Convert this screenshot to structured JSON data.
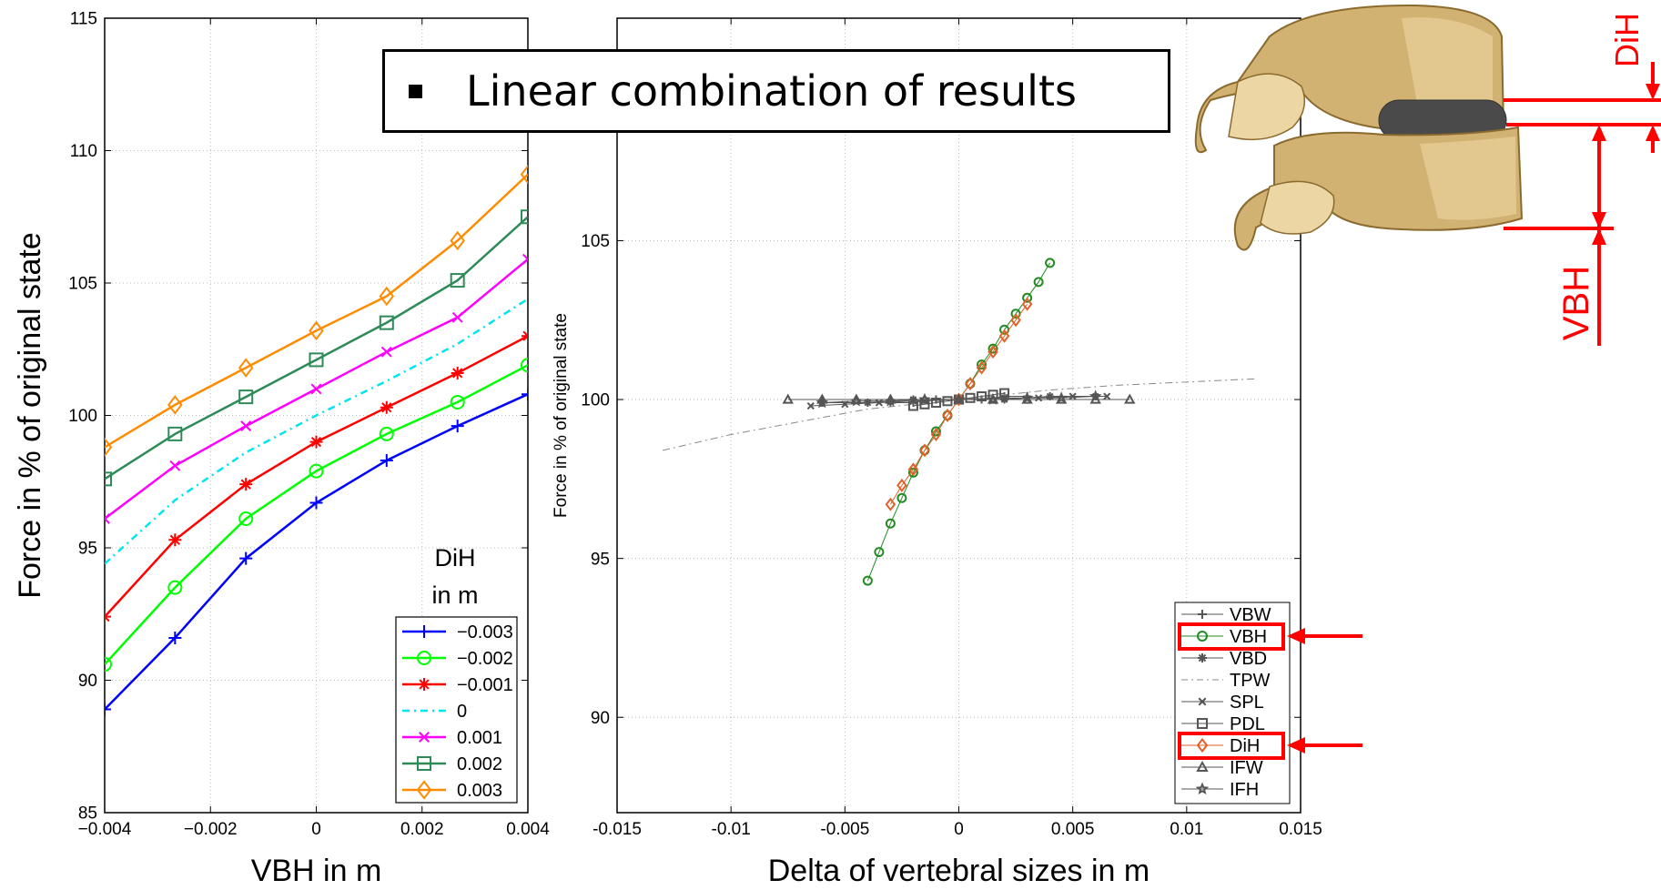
{
  "banner": {
    "text": "Linear combination of results"
  },
  "annotation": {
    "labels": [
      "DiH",
      "VBH"
    ],
    "color": "#ff0000"
  },
  "chart_data": [
    {
      "type": "line",
      "xlabel": "VBH in m",
      "ylabel": "Force in % of original state",
      "xlim": [
        -0.004,
        0.004
      ],
      "ylim": [
        85,
        115
      ],
      "xticks": [
        -0.004,
        -0.002,
        0,
        0.002,
        0.004
      ],
      "xtick_labels": [
        "−0.004",
        "−0.002",
        "0",
        "0.002",
        "0.004"
      ],
      "yticks": [
        85,
        90,
        95,
        100,
        105,
        110,
        115
      ],
      "ytick_labels": [
        "85",
        "90",
        "95",
        "100",
        "105",
        "110",
        "115"
      ],
      "grid": true,
      "legend_title": [
        "DiH",
        "in m"
      ],
      "legend_position": "bottom-right",
      "x": [
        -0.004,
        -0.00267,
        -0.00133,
        0,
        0.00133,
        0.00267,
        0.004
      ],
      "series": [
        {
          "name": "−0.003",
          "color": "#0000ff",
          "marker": "plus",
          "values": [
            88.9,
            91.6,
            94.6,
            96.7,
            98.3,
            99.6,
            100.8
          ]
        },
        {
          "name": "−0.002",
          "color": "#00ff00",
          "marker": "circle",
          "values": [
            90.6,
            93.5,
            96.1,
            97.9,
            99.3,
            100.5,
            101.9
          ]
        },
        {
          "name": "−0.001",
          "color": "#ff0000",
          "marker": "asterisk",
          "values": [
            92.4,
            95.3,
            97.4,
            99.0,
            100.3,
            101.6,
            103.0
          ]
        },
        {
          "name": "0",
          "color": "#00e5ee",
          "marker": "none",
          "dash": "dashdot",
          "values": [
            94.4,
            96.8,
            98.6,
            100.0,
            101.3,
            102.7,
            104.4
          ]
        },
        {
          "name": "0.001",
          "color": "#ff00ff",
          "marker": "x",
          "values": [
            96.1,
            98.1,
            99.6,
            101.0,
            102.4,
            103.7,
            105.9
          ]
        },
        {
          "name": "0.002",
          "color": "#2e8b57",
          "marker": "square",
          "values": [
            97.6,
            99.3,
            100.7,
            102.1,
            103.5,
            105.1,
            107.5
          ]
        },
        {
          "name": "0.003",
          "color": "#ff8c00",
          "marker": "diamond",
          "values": [
            98.8,
            100.4,
            101.8,
            103.2,
            104.5,
            106.6,
            109.1
          ]
        }
      ]
    },
    {
      "type": "line",
      "xlabel": "Delta of vertebral sizes in m",
      "ylabel": "Force in % of original state",
      "xlim": [
        -0.015,
        0.015
      ],
      "ylim": [
        87,
        112
      ],
      "xticks": [
        -0.015,
        -0.01,
        -0.005,
        0,
        0.005,
        0.01,
        0.015
      ],
      "xtick_labels": [
        "-0.015",
        "-0.01",
        "-0.005",
        "0",
        "0.005",
        "0.01",
        "0.015"
      ],
      "yticks": [
        90,
        95,
        100,
        105
      ],
      "ytick_labels": [
        "90",
        "95",
        "100",
        "105"
      ],
      "grid": true,
      "legend_position": "bottom-right",
      "highlighted_legend_entries": [
        "VBH",
        "DiH"
      ],
      "series": [
        {
          "name": "VBW",
          "color": "#555555",
          "marker": "plus",
          "x": [
            -0.003,
            -0.002,
            -0.001,
            0,
            0.001,
            0.002,
            0.003
          ],
          "values": [
            99.9,
            99.9,
            100.0,
            100.0,
            100.0,
            100.1,
            100.1
          ]
        },
        {
          "name": "VBH",
          "color": "#228b22",
          "marker": "circle",
          "x": [
            -0.004,
            -0.0035,
            -0.003,
            -0.0025,
            -0.002,
            -0.0015,
            -0.001,
            -0.0005,
            0,
            0.0005,
            0.001,
            0.0015,
            0.002,
            0.0025,
            0.003,
            0.0035,
            0.004
          ],
          "values": [
            94.3,
            95.2,
            96.1,
            96.9,
            97.7,
            98.4,
            99.0,
            99.5,
            100.0,
            100.5,
            101.1,
            101.6,
            102.2,
            102.7,
            103.2,
            103.7,
            104.3
          ]
        },
        {
          "name": "VBD",
          "color": "#555555",
          "marker": "asterisk",
          "x": [
            -0.006,
            -0.004,
            -0.002,
            0,
            0.002,
            0.004,
            0.006
          ],
          "values": [
            99.9,
            99.9,
            100.0,
            100.0,
            100.0,
            100.1,
            100.1
          ]
        },
        {
          "name": "TPW",
          "color": "#888888",
          "marker": "none",
          "dash": "dashdot",
          "x": [
            -0.013,
            -0.01,
            -0.007,
            -0.004,
            0,
            0.004,
            0.007,
            0.01,
            0.013
          ],
          "values": [
            98.4,
            98.9,
            99.3,
            99.7,
            100.0,
            100.3,
            100.45,
            100.55,
            100.65
          ]
        },
        {
          "name": "SPL",
          "color": "#555555",
          "marker": "x",
          "x": [
            -0.0065,
            -0.005,
            -0.0035,
            -0.002,
            0,
            0.002,
            0.0035,
            0.005,
            0.0065
          ],
          "values": [
            99.8,
            99.85,
            99.9,
            99.95,
            100.0,
            100.05,
            100.05,
            100.1,
            100.1
          ]
        },
        {
          "name": "PDL",
          "color": "#555555",
          "marker": "square",
          "x": [
            -0.002,
            -0.0015,
            -0.001,
            -0.0005,
            0,
            0.0005,
            0.001,
            0.0015,
            0.002
          ],
          "values": [
            99.8,
            99.85,
            99.9,
            99.95,
            100.0,
            100.05,
            100.1,
            100.15,
            100.2
          ]
        },
        {
          "name": "DiH",
          "color": "#e2612a",
          "marker": "diamond",
          "x": [
            -0.003,
            -0.0025,
            -0.002,
            -0.0015,
            -0.001,
            -0.0005,
            0,
            0.0005,
            0.001,
            0.0015,
            0.002,
            0.0025,
            0.003
          ],
          "values": [
            96.7,
            97.3,
            97.8,
            98.4,
            98.9,
            99.5,
            100.0,
            100.5,
            101.0,
            101.5,
            102.0,
            102.5,
            103.0
          ]
        },
        {
          "name": "IFW",
          "color": "#555555",
          "marker": "triangle",
          "x": [
            -0.0075,
            -0.006,
            -0.0045,
            -0.003,
            -0.0015,
            0,
            0.0015,
            0.003,
            0.0045,
            0.006,
            0.0075
          ],
          "values": [
            100.0,
            100.0,
            100.0,
            100.0,
            100.0,
            100.0,
            100.0,
            100.0,
            100.0,
            100.0,
            100.0
          ]
        },
        {
          "name": "IFH",
          "color": "#555555",
          "marker": "star",
          "x": [
            -0.006,
            -0.0045,
            -0.003,
            -0.0015,
            0,
            0.0015,
            0.003,
            0.0045,
            0.006
          ],
          "values": [
            99.9,
            99.95,
            99.95,
            100.0,
            100.0,
            100.0,
            100.05,
            100.05,
            100.1
          ]
        }
      ]
    }
  ]
}
